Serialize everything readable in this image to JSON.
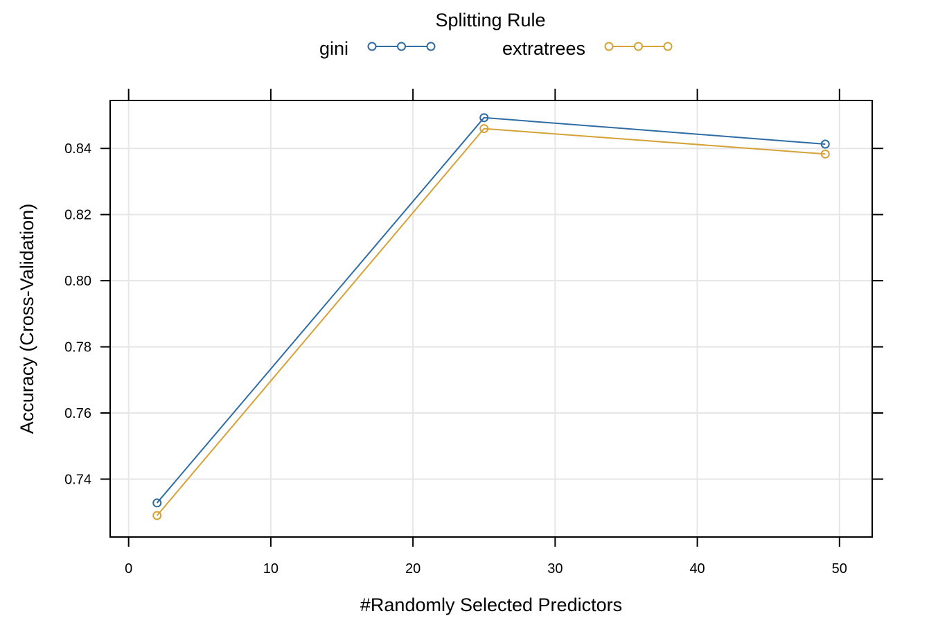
{
  "chart_data": {
    "type": "line",
    "title": "",
    "legend_title": "Splitting Rule",
    "legend_position": "top",
    "xlabel": "#Randomly Selected Predictors",
    "ylabel": "Accuracy (Cross-Validation)",
    "xlim": [
      -1.3,
      52.3
    ],
    "ylim": [
      0.7225,
      0.8545
    ],
    "xticks": [
      0,
      10,
      20,
      30,
      40,
      50
    ],
    "xtick_labels": [
      "0",
      "10",
      "20",
      "30",
      "40",
      "50"
    ],
    "yticks": [
      0.74,
      0.76,
      0.78,
      0.8,
      0.82,
      0.84
    ],
    "ytick_labels": [
      "0.74",
      "0.76",
      "0.78",
      "0.80",
      "0.82",
      "0.84"
    ],
    "grid": true,
    "x": [
      2,
      25,
      49
    ],
    "series": [
      {
        "name": "gini",
        "color": "#2e6ca4",
        "marker": "open-circle",
        "values": [
          0.7328,
          0.8493,
          0.8413
        ]
      },
      {
        "name": "extratrees",
        "color": "#d4a237",
        "marker": "open-circle",
        "values": [
          0.729,
          0.846,
          0.8383
        ]
      }
    ]
  }
}
